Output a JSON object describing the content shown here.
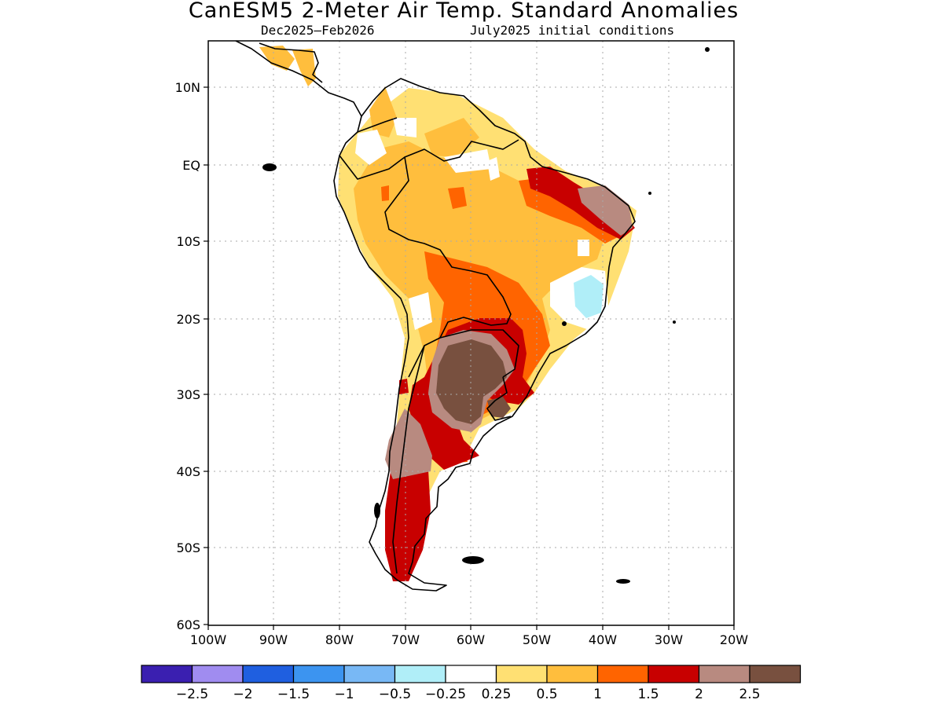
{
  "title": "CanESM5 2-Meter Air Temp. Standard Anomalies",
  "subtitle_period": "Dec2025–Feb2026",
  "subtitle_init": "July2025 initial conditions",
  "lat_ticks": [
    "10N",
    "EQ",
    "10S",
    "20S",
    "30S",
    "40S",
    "50S",
    "60S"
  ],
  "lon_ticks": [
    "100W",
    "90W",
    "80W",
    "70W",
    "60W",
    "50W",
    "40W",
    "30W",
    "20W"
  ],
  "colorbar": {
    "colors": [
      "#3a1fb0",
      "#a08cf0",
      "#1f5fe0",
      "#3c94f0",
      "#78b8f5",
      "#b0eef8",
      "#ffffff",
      "#ffe073",
      "#ffbe3d",
      "#ff6400",
      "#c80000",
      "#b88a80",
      "#78503f"
    ],
    "labels": [
      "−2.5",
      "−2",
      "−1.5",
      "−1",
      "−0.5",
      "−0.25",
      "0.25",
      "0.5",
      "1",
      "1.5",
      "2",
      "2.5"
    ]
  }
}
